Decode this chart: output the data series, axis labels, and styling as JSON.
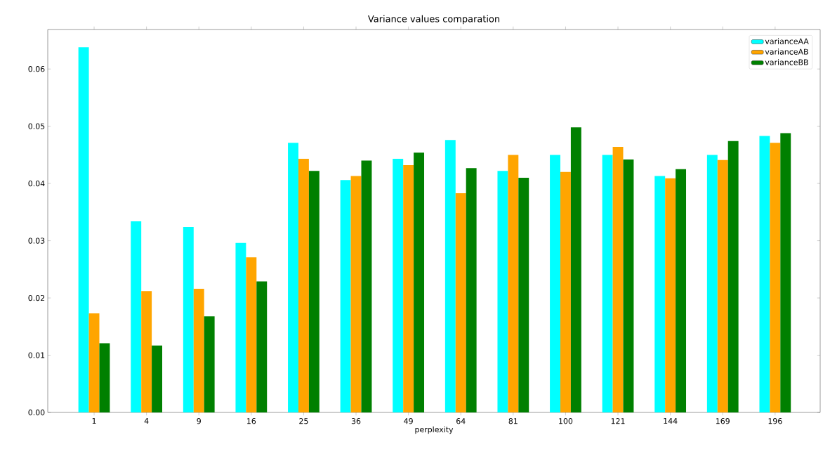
{
  "chart_data": {
    "type": "bar",
    "title": "Variance values comparation",
    "xlabel": "perplexity",
    "categories": [
      "1",
      "4",
      "9",
      "16",
      "25",
      "36",
      "49",
      "64",
      "81",
      "100",
      "121",
      "144",
      "169",
      "196"
    ],
    "series": [
      {
        "name": "varianceAA",
        "color": "#00ffff",
        "values": [
          0.0638,
          0.0334,
          0.0324,
          0.0296,
          0.0471,
          0.0406,
          0.0443,
          0.0476,
          0.0422,
          0.045,
          0.045,
          0.0413,
          0.045,
          0.0483
        ]
      },
      {
        "name": "varianceAB",
        "color": "#ffa500",
        "values": [
          0.0173,
          0.0212,
          0.0216,
          0.0271,
          0.0443,
          0.0413,
          0.0432,
          0.0383,
          0.045,
          0.042,
          0.0464,
          0.0409,
          0.0441,
          0.0471
        ]
      },
      {
        "name": "varianceBB",
        "color": "#008000",
        "values": [
          0.0121,
          0.0117,
          0.0168,
          0.0229,
          0.0422,
          0.044,
          0.0454,
          0.0427,
          0.041,
          0.0498,
          0.0442,
          0.0425,
          0.0474,
          0.0488
        ]
      }
    ],
    "ylim": [
      0,
      0.0669
    ],
    "yticks": [
      {
        "value": 0,
        "label": "0.00"
      },
      {
        "value": 0.01,
        "label": "0.01"
      },
      {
        "value": 0.02,
        "label": "0.02"
      },
      {
        "value": 0.03,
        "label": "0.03"
      },
      {
        "value": 0.04,
        "label": "0.04"
      },
      {
        "value": 0.05,
        "label": "0.05"
      },
      {
        "value": 0.06,
        "label": "0.06"
      }
    ],
    "legend": "top right"
  }
}
